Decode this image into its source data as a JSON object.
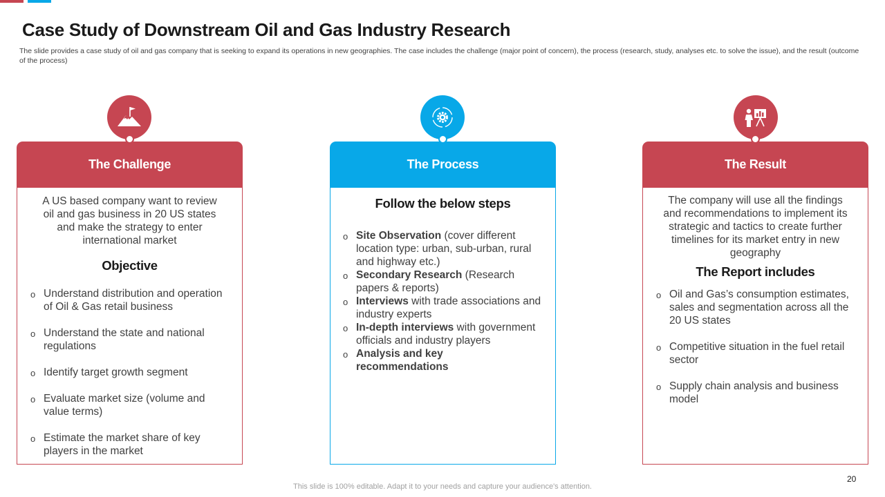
{
  "title": "Case Study of Downstream Oil and Gas Industry Research",
  "subtitle": "The slide provides a case study of oil and gas company that is seeking to expand its operations in new geographies. The case includes the challenge (major point of concern), the process (research, study, analyses etc. to solve the issue), and the result (outcome of the process)",
  "colors": {
    "red": "#c64652",
    "blue": "#08a8e8"
  },
  "challenge": {
    "icon": "mountain-flag-icon",
    "header": "The Challenge",
    "intro": "A US based company want to review oil and gas business in 20 US states and make the strategy to enter international market",
    "heading": "Objective",
    "bullets": [
      "Understand distribution and operation of Oil & Gas retail business",
      "Understand the state and national regulations",
      "Identify target growth segment",
      "Evaluate market size (volume and value terms)",
      "Estimate the market share of key players in the market"
    ]
  },
  "process": {
    "icon": "gear-cycle-icon",
    "header": "The Process",
    "heading": "Follow the below steps",
    "steps": [
      {
        "bold": "Site Observation",
        "text": " (cover different location type: urban, sub-urban, rural and highway etc.)"
      },
      {
        "bold": "Secondary Research",
        "text": " (Research papers & reports)"
      },
      {
        "bold": "Interviews",
        "text": " with trade associations and industry experts"
      },
      {
        "bold": "In-depth interviews",
        "text": " with government officials and industry players"
      },
      {
        "bold": "Analysis and key recommendations",
        "text": ""
      }
    ]
  },
  "result": {
    "icon": "presentation-board-icon",
    "header": "The Result",
    "intro": "The company will use all the findings and recommendations to implement its strategic and tactics to create further timelines for its market entry in new geography",
    "heading": "The Report includes",
    "bullets": [
      "Oil and Gas’s consumption estimates, sales and segmentation across all the 20 US states",
      "Competitive situation in the fuel retail sector",
      "Supply chain analysis and business model"
    ]
  },
  "bullet_marker": "o",
  "page_number": "20",
  "footer": "This slide is 100% editable. Adapt it to your needs and capture your audience's attention."
}
